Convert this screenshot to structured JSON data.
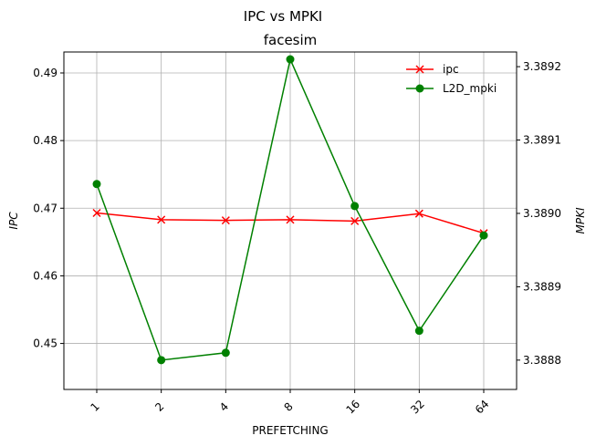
{
  "chart_data": {
    "type": "line",
    "suptitle": "IPC vs MPKI",
    "title": "facesim",
    "xlabel": "PREFETCHING",
    "ylabel_left": "IPC",
    "ylabel_right": "MPKI",
    "categories": [
      "1",
      "2",
      "4",
      "8",
      "16",
      "32",
      "64"
    ],
    "ylim_left": [
      0.4432,
      0.4931
    ],
    "yticks_left": [
      "0.45",
      "0.46",
      "0.47",
      "0.48",
      "0.49"
    ],
    "ylim_right": [
      3.38876,
      3.38922
    ],
    "yticks_right": [
      "3.3888",
      "3.3889",
      "3.3890",
      "3.3891",
      "3.3892"
    ],
    "grid": true,
    "legend_position": "upper-right",
    "series": [
      {
        "name": "ipc",
        "axis": "left",
        "color": "#ff0000",
        "marker": "x",
        "values": [
          0.4693,
          0.4683,
          0.4682,
          0.4683,
          0.4681,
          0.4692,
          0.4663
        ]
      },
      {
        "name": "L2D_mpki",
        "axis": "right",
        "color": "#008000",
        "marker": "circle",
        "values": [
          3.38904,
          3.3888,
          3.38881,
          3.38921,
          3.38901,
          3.38884,
          3.38897
        ]
      }
    ]
  }
}
